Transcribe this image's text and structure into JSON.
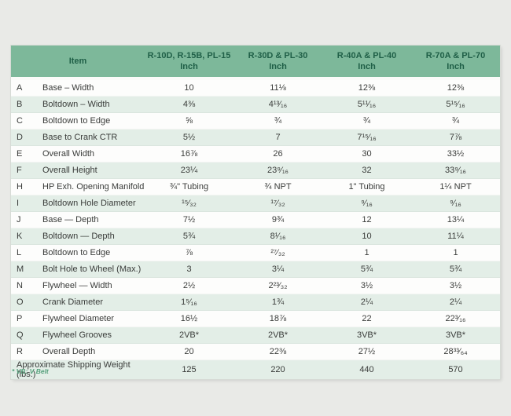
{
  "page": {
    "background_color": "#e9eae7",
    "footnote": "* VB: V Belt"
  },
  "colors": {
    "header_bg": "#7db89a",
    "header_text": "#1f5f47",
    "stripe_row": "#e3eee7",
    "plain_row": "#fdfdfc",
    "footnote_text": "#56a17c"
  },
  "table": {
    "header": {
      "item_label": "Item",
      "columns": [
        {
          "models": "R-10D, R-15B, PL-15",
          "unit": "Inch"
        },
        {
          "models": "R-30D & PL-30",
          "unit": "Inch"
        },
        {
          "models": "R-40A & PL-40",
          "unit": "Inch"
        },
        {
          "models": "R-70A & PL-70",
          "unit": "Inch"
        }
      ]
    },
    "rows": [
      {
        "letter": "A",
        "item": "Base – Width",
        "values": [
          "10",
          "11⅛",
          "12⅜",
          "12⅜"
        ]
      },
      {
        "letter": "B",
        "item": "Boltdown – Width",
        "values": [
          "4⅜",
          "4¹³⁄₁₆",
          "5¹¹⁄₁₆",
          "5¹⁵⁄₁₆"
        ]
      },
      {
        "letter": "C",
        "item": "Boltdown to Edge",
        "values": [
          "⅝",
          "¾",
          "¾",
          "¾"
        ]
      },
      {
        "letter": "D",
        "item": "Base to Crank CTR",
        "values": [
          "5½",
          "7",
          "7¹⁵⁄₁₆",
          "7⅞"
        ]
      },
      {
        "letter": "E",
        "item": "Overall Width",
        "values": [
          "16⅞",
          "26",
          "30",
          "33½"
        ]
      },
      {
        "letter": "F",
        "item": "Overall Height",
        "values": [
          "23¼",
          "23⁹⁄₁₆",
          "32",
          "33⁹⁄₁₆"
        ]
      },
      {
        "letter": "H",
        "item": "HP Exh. Opening Manifold",
        "values": [
          "¾\" Tubing",
          "¾ NPT",
          "1\" Tubing",
          "1¼ NPT"
        ]
      },
      {
        "letter": "I",
        "item": "Boltdown Hole Diameter",
        "values": [
          "¹⁵⁄₃₂",
          "¹⁷⁄₃₂",
          "⁹⁄₁₆",
          "⁹⁄₁₆"
        ]
      },
      {
        "letter": "J",
        "item": "Base — Depth",
        "values": [
          "7½",
          "9¾",
          "12",
          "13¼"
        ]
      },
      {
        "letter": "K",
        "item": "Boltdown — Depth",
        "values": [
          "5¾",
          "8¹⁄₁₆",
          "10",
          "11¼"
        ]
      },
      {
        "letter": "L",
        "item": "Boltdown to Edge",
        "values": [
          "⅞",
          "²⁷⁄₃₂",
          "1",
          "1"
        ]
      },
      {
        "letter": "M",
        "item": "Bolt Hole to Wheel (Max.)",
        "values": [
          "3",
          "3¼",
          "5¾",
          "5¾"
        ]
      },
      {
        "letter": "N",
        "item": "Flywheel — Width",
        "values": [
          "2½",
          "2²³⁄₃₂",
          "3½",
          "3½"
        ]
      },
      {
        "letter": "O",
        "item": "Crank Diameter",
        "values": [
          "1⁵⁄₁₆",
          "1¾",
          "2¼",
          "2¼"
        ]
      },
      {
        "letter": "P",
        "item": "Flywheel Diameter",
        "values": [
          "16½",
          "18⅞",
          "22",
          "22³⁄₁₆"
        ]
      },
      {
        "letter": "Q",
        "item": "Flywheel Grooves",
        "values": [
          "2VB*",
          "2VB*",
          "3VB*",
          "3VB*"
        ]
      },
      {
        "letter": "R",
        "item": "Overall Depth",
        "values": [
          "20",
          "22⅜",
          "27½",
          "28³³⁄₆₄"
        ]
      }
    ],
    "footer_row": {
      "label": "Approximate Shipping Weight (lbs.)",
      "values": [
        "125",
        "220",
        "440",
        "570"
      ]
    }
  }
}
